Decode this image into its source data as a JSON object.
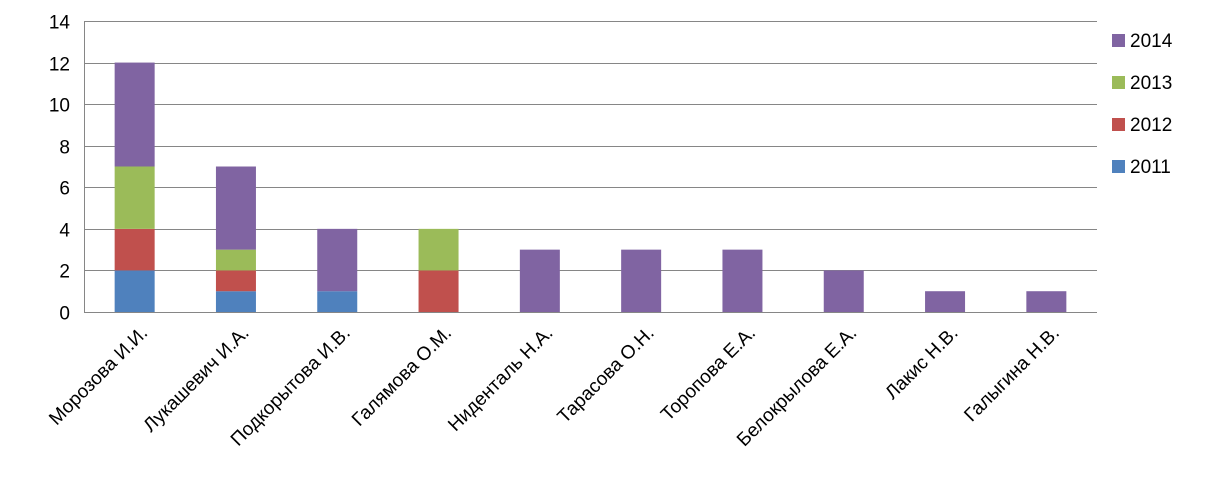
{
  "chart_data": {
    "type": "bar",
    "stacked": true,
    "categories": [
      "Морозова И.И.",
      "Лукашевич И.А.",
      "Подкорытова И.В.",
      "Галямова О.М.",
      "Нидентaль Н.А.",
      "Тарасова О.Н.",
      "Торопова Е.А.",
      "Белокрылова Е.А.",
      "Лакис Н.В.",
      "Галыгина Н.В."
    ],
    "series": [
      {
        "name": "2011",
        "color": "#4F81BD",
        "values": [
          2,
          1,
          1,
          0,
          0,
          0,
          0,
          0,
          0,
          0
        ]
      },
      {
        "name": "2012",
        "color": "#C0504D",
        "values": [
          2,
          1,
          0,
          2,
          0,
          0,
          0,
          0,
          0,
          0
        ]
      },
      {
        "name": "2013",
        "color": "#9BBB59",
        "values": [
          3,
          1,
          0,
          2,
          0,
          0,
          0,
          0,
          0,
          0
        ]
      },
      {
        "name": "2014",
        "color": "#8064A2",
        "values": [
          5,
          4,
          3,
          0,
          3,
          3,
          3,
          2,
          1,
          1
        ]
      }
    ],
    "ylim": [
      0,
      14
    ],
    "yticks": [
      "0",
      "2",
      "4",
      "6",
      "8",
      "10",
      "12",
      "14"
    ],
    "grid": true,
    "legend_position": "right",
    "legend_order": [
      "2014",
      "2013",
      "2012",
      "2011"
    ],
    "title": "",
    "xlabel": "",
    "ylabel": ""
  }
}
